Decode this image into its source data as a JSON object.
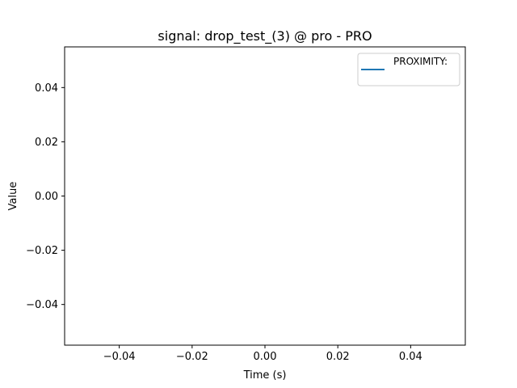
{
  "chart_data": {
    "type": "line",
    "title": "signal: drop_test_(3) @ pro - PRO",
    "xlabel": "Time (s)",
    "ylabel": "Value",
    "xlim": [
      -0.055,
      0.055
    ],
    "ylim": [
      -0.055,
      0.055
    ],
    "xticks": [
      -0.04,
      -0.02,
      0.0,
      0.02,
      0.04
    ],
    "xtick_labels": [
      "−0.04",
      "−0.02",
      "0.00",
      "0.02",
      "0.04"
    ],
    "yticks": [
      -0.04,
      -0.02,
      0.0,
      0.02,
      0.04
    ],
    "ytick_labels": [
      "−0.04",
      "−0.02",
      "0.00",
      "0.02",
      "0.04"
    ],
    "grid": false,
    "legend_position": "upper right",
    "series": [
      {
        "name": "PROXIMITY:",
        "color": "#1f77b4",
        "x": [],
        "y": []
      }
    ]
  }
}
